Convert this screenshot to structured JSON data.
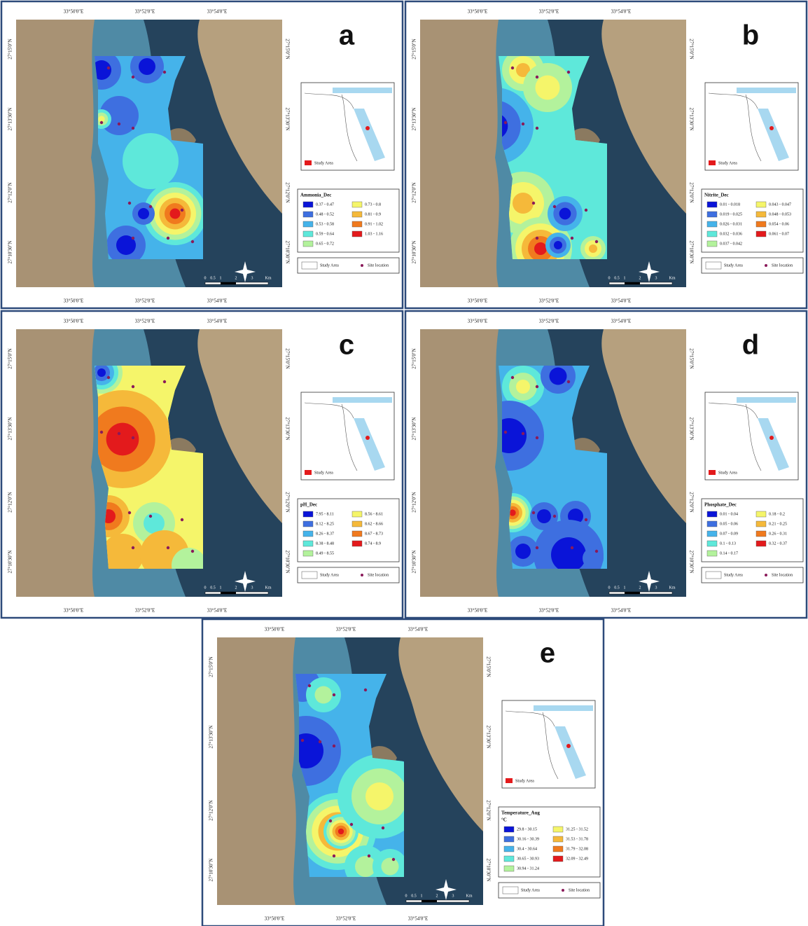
{
  "coordinates": {
    "longitude": [
      "33°50'0\"E",
      "33°52'0\"E",
      "33°54'0\"E"
    ],
    "latitude": [
      "27°15'0\"N",
      "27°13'30\"N",
      "27°12'0\"N",
      "27°10'30\"N"
    ]
  },
  "scale_bar": [
    "0",
    "0.5",
    "1",
    "2",
    "3",
    "Km"
  ],
  "inset_label": "Study Area",
  "legend_common": {
    "study_area": "Study Area",
    "site_location": "Site location"
  },
  "class_colors": [
    "#0a14d8",
    "#3e6fe0",
    "#45b3ea",
    "#5ee8da",
    "#b3f29c",
    "#f5f56a",
    "#f5b93a",
    "#f07a1e",
    "#e31a1c"
  ],
  "panels": [
    {
      "letter": "a",
      "legend": {
        "title": "Ammonia_Dec",
        "entries": [
          "0.37 - 0.47",
          "0.48 - 0.52",
          "0.53 - 0.58",
          "0.59 - 0.64",
          "0.65 - 0.72",
          "0.73 - 0.8",
          "0.81 - 0.9",
          "0.91 - 1.02",
          "1.03 - 1.16"
        ]
      }
    },
    {
      "letter": "b",
      "legend": {
        "title": "Nitrite_Dec",
        "entries": [
          "0.01 - 0.018",
          "0.019 - 0.025",
          "0.026 - 0.031",
          "0.032 - 0.036",
          "0.037 - 0.042",
          "0.043 - 0.047",
          "0.048 - 0.053",
          "0.054 - 0.06",
          "0.061 - 0.07"
        ]
      }
    },
    {
      "letter": "c",
      "legend": {
        "title": "pH_Dec",
        "entries": [
          "7.95 - 8.11",
          "8.12 - 8.25",
          "8.26 - 8.37",
          "8.38 - 8.48",
          "8.49 - 8.55",
          "8.56 - 8.61",
          "8.62 - 8.66",
          "8.67 - 8.73",
          "8.74 - 8.9"
        ]
      }
    },
    {
      "letter": "d",
      "legend": {
        "title": "Phosphate_Dec",
        "entries": [
          "0.01 - 0.04",
          "0.05 - 0.06",
          "0.07 - 0.09",
          "0.1 - 0.13",
          "0.14 - 0.17",
          "0.18 - 0.2",
          "0.21 - 0.25",
          "0.26 - 0.31",
          "0.32 - 0.37"
        ]
      }
    },
    {
      "letter": "e",
      "legend": {
        "title": "Temperature_Aug",
        "unit": "°C",
        "entries": [
          "29.8 - 30.15",
          "30.16 - 30.39",
          "30.4 - 30.64",
          "30.65 - 30.93",
          "30.94 - 31.24",
          "31.25 - 31.52",
          "31.53 - 31.78",
          "31.79 - 32.08",
          "32.09 - 32.49"
        ]
      }
    }
  ]
}
